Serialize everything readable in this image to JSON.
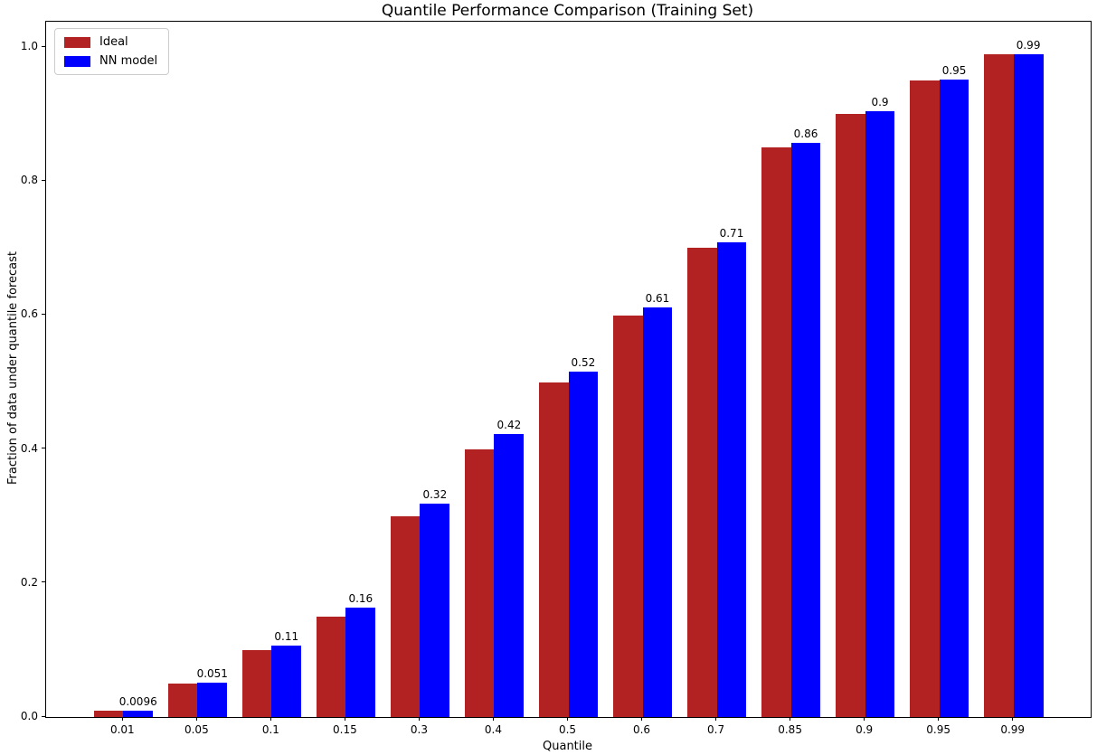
{
  "chart_data": {
    "type": "bar",
    "title": "Quantile Performance Comparison (Training Set)",
    "xlabel": "Quantile",
    "ylabel": "Fraction of data under quantile forecast",
    "categories": [
      "0.01",
      "0.05",
      "0.1",
      "0.15",
      "0.3",
      "0.4",
      "0.5",
      "0.6",
      "0.7",
      "0.85",
      "0.9",
      "0.95",
      "0.99"
    ],
    "series": [
      {
        "name": "Ideal",
        "color": "#B22222",
        "values": [
          0.01,
          0.05,
          0.1,
          0.15,
          0.3,
          0.4,
          0.5,
          0.6,
          0.7,
          0.85,
          0.9,
          0.95,
          0.99
        ]
      },
      {
        "name": "NN model",
        "color": "#0000FF",
        "values": [
          0.0096,
          0.051,
          0.107,
          0.163,
          0.318,
          0.422,
          0.516,
          0.611,
          0.709,
          0.857,
          0.904,
          0.951,
          0.99
        ]
      }
    ],
    "bar_labels": [
      "0.0096",
      "0.051",
      "0.11",
      "0.16",
      "0.32",
      "0.42",
      "0.52",
      "0.61",
      "0.71",
      "0.86",
      "0.9",
      "0.95",
      "0.99"
    ],
    "yticks": [
      "0.0",
      "0.2",
      "0.4",
      "0.6",
      "0.8",
      "1.0"
    ],
    "ylim": [
      0,
      1.038
    ],
    "xlim_pad_units": 1.04,
    "legend_position": "upper left",
    "grid": false,
    "background": "#ffffff",
    "spine_color": "#000000"
  }
}
